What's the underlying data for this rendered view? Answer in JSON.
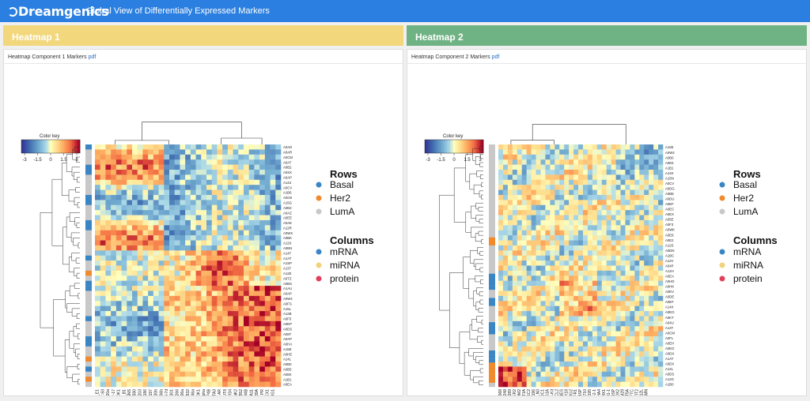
{
  "app": {
    "brand": "Dreamgenics",
    "title": "Global View of Differentially Expressed Markers"
  },
  "panels": [
    {
      "header": "Heatmap 1",
      "card_title": "Heatmap Component 1 Markers",
      "pdf_link": "pdf",
      "color_key": {
        "title": "Color key",
        "ticks": [
          "-3",
          "-1.5",
          "0",
          "1.5",
          "3"
        ]
      },
      "col_groups": [
        "protein",
        "mRNA",
        "mRNA",
        "protein",
        "mRNA",
        "mRNA",
        "miRNA",
        "miRNA",
        "miRNA",
        "miRNA",
        "miRNA",
        "miRNA",
        "miRNA",
        "miRNA",
        "miRNA",
        "miRNA",
        "miRNA",
        "miRNA",
        "miRNA",
        "miRNA",
        "protein",
        "protein",
        "protein",
        "protein",
        "protein",
        "mRNA",
        "mRNA",
        "mRNA",
        "mRNA",
        "protein",
        "mRNA",
        "mRNA",
        "mRNA",
        "protein",
        "mRNA"
      ],
      "row_labels": [
        "A0AD",
        "A0AR",
        "A0CM",
        "A0AT",
        "A0B2",
        "A0SX",
        "A0AP",
        "A143",
        "A0CV",
        "A1B6",
        "A0G9",
        "A15G",
        "A0B3",
        "A0AZ",
        "A0EE",
        "A0AE",
        "A12R",
        "A0WX",
        "A0BK",
        "A12X",
        "A0BN",
        "A14T",
        "A1AT",
        "A1SP",
        "A137",
        "A12E",
        "A0TZ",
        "A0BS",
        "A1AU",
        "A0AP",
        "A0W4",
        "A0FS",
        "A15L",
        "A12B",
        "A0F5",
        "A0EP",
        "A0DS",
        "A08T",
        "A0AP",
        "A0HA",
        "A15E",
        "A0HE",
        "A14L",
        "A0B0",
        "A0B5",
        "A08X",
        "A1B1",
        "A0EA"
      ],
      "col_labels": [
        "Cyclin_E1",
        "hsa-mir-93",
        "hsa-mir-20a",
        "hsa-mir-17",
        "CDK1",
        "Cyclin_B1",
        "ASNS",
        "hsa-mir-590",
        "hsa-mir-203",
        "hsa-mir-186",
        "hsa-mir-197",
        "hsa-mir-130b",
        "hsa-mir-106b",
        "hsa-let-7d",
        "hsa-mir-1301",
        "hsa-mir-1266",
        "hsa-mir-106a",
        "hsa-mir-532",
        "hsa-mir-146a",
        "eCDK1",
        "ER-alpha",
        "INPP4B",
        "GATA3",
        "AR",
        "FUT8",
        "C4orf34",
        "JNK2",
        "ZNF552",
        "KDM4B",
        "SLC7A11",
        "TTC39A",
        "PR",
        "PREX1",
        "LRIG1",
        ""
      ],
      "legend": {
        "rows_title": "Rows",
        "rows": [
          {
            "label": "Basal",
            "color": "#3a86c4"
          },
          {
            "label": "Her2",
            "color": "#f08a2c"
          },
          {
            "label": "LumA",
            "color": "#c8c8c8"
          }
        ],
        "cols_title": "Columns",
        "cols": [
          {
            "label": "mRNA",
            "color": "#3a86c4"
          },
          {
            "label": "miRNA",
            "color": "#f2d27a"
          },
          {
            "label": "protein",
            "color": "#e0405a"
          }
        ]
      }
    },
    {
      "header": "Heatmap 2",
      "card_title": "Heatmap Component 2 Markers",
      "pdf_link": "pdf",
      "color_key": {
        "title": "Color key",
        "ticks": [
          "-3",
          "-1.5",
          "0",
          "1.5",
          "3"
        ]
      },
      "col_groups": [
        "protein",
        "protein",
        "protein",
        "protein",
        "protein",
        "protein",
        "protein",
        "protein",
        "mRNA",
        "mRNA",
        "mRNA",
        "miRNA",
        "mRNA",
        "mRNA",
        "protein",
        "mRNA",
        "mRNA",
        "mRNA",
        "mRNA",
        "mRNA",
        "mRNA",
        "mRNA",
        "mRNA",
        "mRNA",
        "miRNA",
        "miRNA",
        "miRNA",
        "mRNA",
        "mRNA",
        "miRNA",
        "mRNA",
        "mRNA",
        "mRNA",
        "mRNA",
        "mRNA",
        "mRNA"
      ],
      "row_labels": [
        "A15E",
        "A0W4",
        "A0B0",
        "A0E5",
        "A1B1",
        "A14K",
        "A15N",
        "A0CV",
        "A0DG",
        "A0BE",
        "A0DU",
        "A0EF",
        "A0EC",
        "A0EX",
        "A05E",
        "A0F3",
        "A0WK",
        "A0E8",
        "A0E2",
        "A12S",
        "A0DN",
        "A1BC",
        "A12V",
        "A04P",
        "A12H",
        "A0EA",
        "A0HD",
        "A0HK",
        "A0EV",
        "A0DE",
        "A0BT",
        "A14X",
        "A0EO",
        "A0KT",
        "A04U",
        "A14T",
        "A0CM",
        "A0FL",
        "A0EH",
        "A0EG",
        "A0DX",
        "A1AT",
        "A0DX",
        "A12L",
        "A0DS",
        "A12G",
        "A1B0"
      ],
      "col_labels": [
        "EGFR_pY1068",
        "HER2_pY1248",
        "HER3_pY1289",
        "HER2",
        "PRDM2",
        "CPT1A",
        "TSC2",
        "hsa-mir-196",
        "EGLN3",
        "SDC1",
        "ST6G1A",
        "c-Kit",
        "BCL2",
        "NES",
        "CDK18",
        "NDRG2",
        "ODFR1",
        "PBSP",
        "ZNF710",
        "hsa-mir-195",
        "hsa-mir-2-1",
        "PLEKHA4",
        "MX1",
        "hsa-mir-101-1",
        "DSP",
        "COX2",
        "TRIM29",
        "STAT5A",
        "SFTC",
        "IFIT2",
        "MED12L",
        "AMN",
        "",
        "",
        "",
        ""
      ],
      "legend": {
        "rows_title": "Rows",
        "rows": [
          {
            "label": "Basal",
            "color": "#3a86c4"
          },
          {
            "label": "Her2",
            "color": "#f08a2c"
          },
          {
            "label": "LumA",
            "color": "#c8c8c8"
          }
        ],
        "cols_title": "Columns",
        "cols": [
          {
            "label": "mRNA",
            "color": "#3a86c4"
          },
          {
            "label": "miRNA",
            "color": "#f2d27a"
          },
          {
            "label": "protein",
            "color": "#e0405a"
          }
        ]
      }
    }
  ]
}
